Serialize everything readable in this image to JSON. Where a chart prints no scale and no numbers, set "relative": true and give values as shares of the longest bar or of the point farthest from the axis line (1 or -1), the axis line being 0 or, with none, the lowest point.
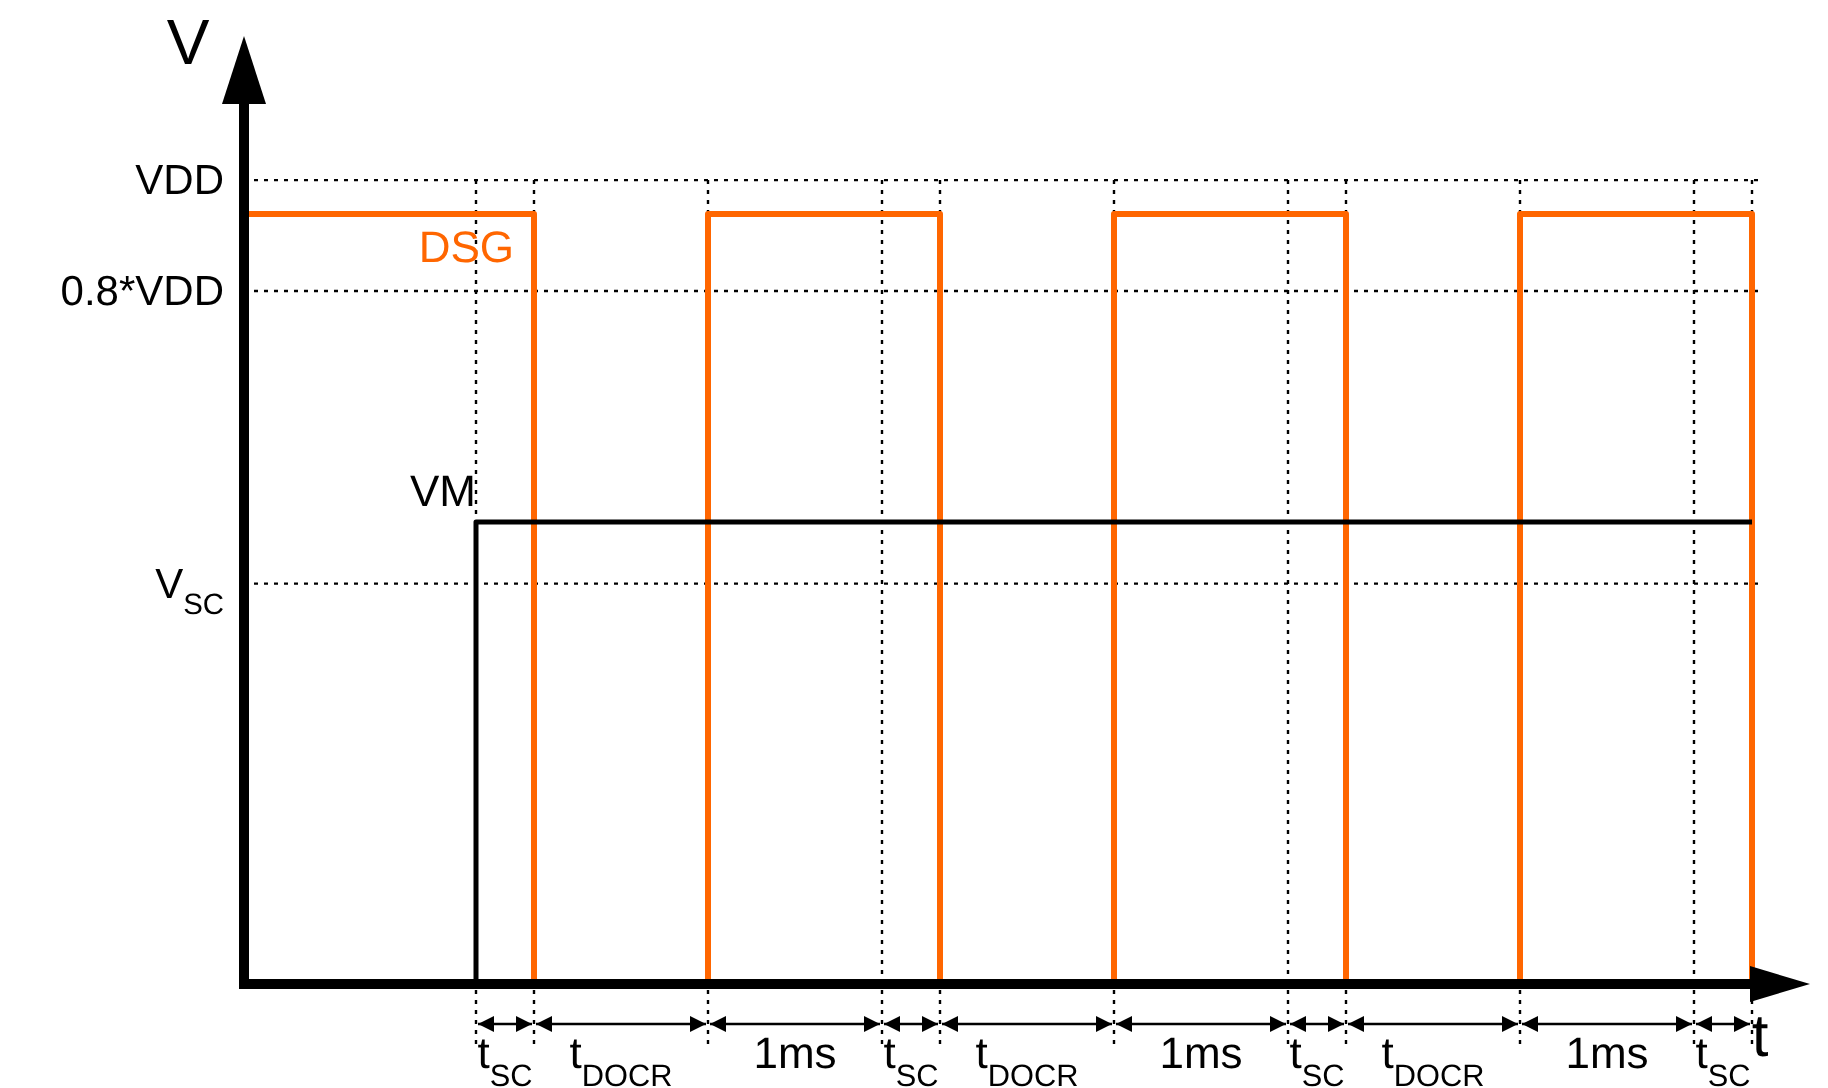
{
  "chart_data": {
    "type": "step",
    "relative": true,
    "xlabel": "t",
    "ylabel": "V",
    "legend": false,
    "line_style": "solid",
    "marker": "none",
    "categories": [
      null,
      null,
      null,
      null,
      null,
      null,
      null,
      null,
      null,
      "t$_{SC}$",
      null,
      null,
      null,
      "t$_{DOCR}$",
      null,
      null,
      null,
      null,
      null,
      "1ms",
      null,
      null,
      null,
      "t$_{SC}$",
      null,
      null,
      null,
      "t$_{DOCR}$",
      null,
      null,
      null,
      null,
      null,
      "1ms",
      null,
      null,
      null,
      "t$_{SC}$",
      null,
      null,
      null,
      "t$_{DOCR}$",
      null,
      null,
      null,
      null,
      null,
      "1ms",
      null,
      null,
      null,
      "t$_{SC}$",
      null,
      null,
      null
    ],
    "series": [
      {
        "name": "DSG",
        "color": "#ff6600",
        "values": [
          1,
          1,
          1,
          1,
          1,
          1,
          1,
          1,
          1,
          1,
          0,
          0,
          0,
          0,
          0,
          0,
          1,
          1,
          1,
          1,
          1,
          1,
          1,
          1,
          0,
          0,
          0,
          0,
          0,
          0,
          1,
          1,
          1,
          1,
          1,
          1,
          1,
          1,
          0,
          0,
          0,
          0,
          0,
          0,
          1,
          1,
          1,
          1,
          1,
          1,
          1,
          1,
          0,
          null,
          null
        ]
      },
      {
        "name": "VM",
        "color": "#000000",
        "values": [
          0,
          0,
          0,
          0,
          0,
          0,
          0,
          0,
          0.6,
          0.6,
          0.6,
          0.6,
          0.6,
          0.6,
          0.6,
          0.6,
          0.6,
          0.6,
          0.6,
          0.6,
          0.6,
          0.6,
          0.6,
          0.6,
          0.6,
          0.6,
          0.6,
          0.6,
          0.6,
          0.6,
          0.6,
          0.6,
          0.6,
          0.6,
          0.6,
          0.6,
          0.6,
          0.6,
          0.6,
          0.6,
          0.6,
          0.6,
          0.6,
          0.6,
          0.6,
          0.6,
          0.6,
          0.6,
          0.6,
          0.6,
          0.6,
          0.6,
          0.6,
          null,
          null
        ]
      }
    ],
    "ref_lines": [
      {
        "axis": "y",
        "value": 1.044,
        "label": "VDD",
        "line_style": "dotted"
      },
      {
        "axis": "y",
        "value": 0.9,
        "label": "0.8*VDD",
        "line_style": "dotted"
      },
      {
        "axis": "y",
        "value": 0.52,
        "label": "V$_{SC}$",
        "line_style": "dotted"
      }
    ],
    "grid": "x"
  }
}
